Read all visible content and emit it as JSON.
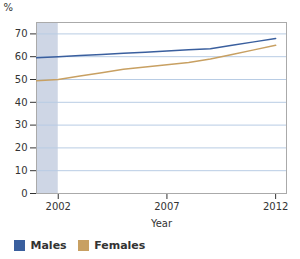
{
  "chart_data": {
    "type": "line",
    "x": [
      2001,
      2002,
      2003,
      2004,
      2005,
      2006,
      2007,
      2008,
      2009,
      2010,
      2011,
      2012
    ],
    "series": [
      {
        "name": "Males",
        "color": "#3a5f9e",
        "values": [
          59.5,
          60.0,
          60.5,
          61.0,
          61.5,
          62.0,
          62.5,
          63.0,
          63.5,
          65.0,
          66.5,
          68.0
        ]
      },
      {
        "name": "Females",
        "color": "#c8a062",
        "values": [
          49.5,
          50.0,
          51.5,
          53.0,
          54.5,
          55.5,
          56.5,
          57.5,
          59.0,
          61.0,
          63.0,
          65.0
        ]
      }
    ],
    "xlabel": "Year",
    "ylabel": "%",
    "xlim": [
      2001,
      2012.5
    ],
    "xticks": [
      2002,
      2007,
      2012
    ],
    "ylim": [
      0,
      75
    ],
    "yticks": [
      0,
      10,
      20,
      30,
      40,
      50,
      60,
      70
    ],
    "grid": true,
    "legend": "bottom",
    "shaded_span": {
      "x": [
        2001,
        2002
      ],
      "color": "#c5cfe0"
    }
  }
}
